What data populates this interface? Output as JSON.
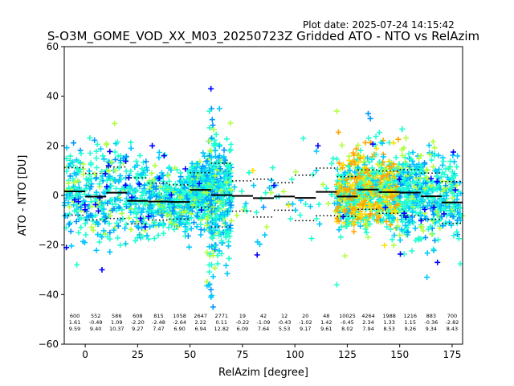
{
  "plot_date": "Plot date: 2025-07-24 14:15:42",
  "chart_data": {
    "type": "scatter",
    "title": "S-O3M_GOME_VOD_XX_M03_20250723Z Gridded ATO - NTO vs RelAzim",
    "xlabel": "RelAzim [degree]",
    "ylabel": "ATO - NTO [DU]",
    "xlim": [
      -10,
      180
    ],
    "ylim": [
      -60,
      60
    ],
    "x_ticks": [
      "0",
      "25",
      "50",
      "75",
      "100",
      "125",
      "150",
      "175"
    ],
    "x_tick_values": [
      0,
      25,
      50,
      75,
      100,
      125,
      150,
      175
    ],
    "y_ticks": [
      "−60",
      "−40",
      "−20",
      "0",
      "20",
      "40",
      "60"
    ],
    "y_tick_values": [
      -60,
      -40,
      -20,
      0,
      20,
      40,
      60
    ],
    "marker": "+",
    "colors": {
      "blue": "#0000ff",
      "azure": "#0096ff",
      "sky": "#00c8ff",
      "aqua": "#20ffd0",
      "lime": "#b0ff40",
      "yellow": "#ffe000",
      "orange": "#ffa500",
      "mean_line": "#000000",
      "frame": "#000000"
    },
    "bins": [
      {
        "x0": -10,
        "x1": 0,
        "count": "600",
        "mean": "1.61",
        "std": "9.59",
        "mean_v": 1.61,
        "std_v": 9.59
      },
      {
        "x0": 0,
        "x1": 10,
        "count": "552",
        "mean": "-0.49",
        "std": "9.40",
        "mean_v": -0.49,
        "std_v": 9.4
      },
      {
        "x0": 10,
        "x1": 20,
        "count": "586",
        "mean": "1.09",
        "std": "10.37",
        "mean_v": 1.09,
        "std_v": 10.37
      },
      {
        "x0": 20,
        "x1": 30,
        "count": "608",
        "mean": "-2.20",
        "std": "9.27",
        "mean_v": -2.2,
        "std_v": 9.27
      },
      {
        "x0": 30,
        "x1": 40,
        "count": "815",
        "mean": "-2.48",
        "std": "7.47",
        "mean_v": -2.48,
        "std_v": 7.47
      },
      {
        "x0": 40,
        "x1": 50,
        "count": "1058",
        "mean": "-2.64",
        "std": "6.90",
        "mean_v": -2.64,
        "std_v": 6.9
      },
      {
        "x0": 50,
        "x1": 60,
        "count": "2647",
        "mean": "2.22",
        "std": "6.94",
        "mean_v": 2.22,
        "std_v": 6.94
      },
      {
        "x0": 60,
        "x1": 70,
        "count": "2771",
        "mean": "0.11",
        "std": "12.82",
        "mean_v": 0.11,
        "std_v": 12.82
      },
      {
        "x0": 70,
        "x1": 80,
        "count": "19",
        "mean": "-0.22",
        "std": "6.09",
        "mean_v": -0.22,
        "std_v": 6.09
      },
      {
        "x0": 80,
        "x1": 90,
        "count": "42",
        "mean": "-1.09",
        "std": "7.64",
        "mean_v": -1.09,
        "std_v": 7.64
      },
      {
        "x0": 90,
        "x1": 100,
        "count": "12",
        "mean": "-0.43",
        "std": "5.53",
        "mean_v": -0.43,
        "std_v": 5.53
      },
      {
        "x0": 100,
        "x1": 110,
        "count": "20",
        "mean": "-1.02",
        "std": "9.17",
        "mean_v": -1.02,
        "std_v": 9.17
      },
      {
        "x0": 110,
        "x1": 120,
        "count": "48",
        "mean": "1.42",
        "std": "9.61",
        "mean_v": 1.42,
        "std_v": 9.61
      },
      {
        "x0": 120,
        "x1": 130,
        "count": "10025",
        "mean": "-0.45",
        "std": "8.02",
        "mean_v": -0.45,
        "std_v": 8.02
      },
      {
        "x0": 130,
        "x1": 140,
        "count": "4264",
        "mean": "2.34",
        "std": "7.94",
        "mean_v": 2.34,
        "std_v": 7.94
      },
      {
        "x0": 140,
        "x1": 150,
        "count": "1988",
        "mean": "1.33",
        "std": "8.53",
        "mean_v": 1.33,
        "std_v": 8.53
      },
      {
        "x0": 150,
        "x1": 160,
        "count": "1216",
        "mean": "1.15",
        "std": "9.26",
        "mean_v": 1.15,
        "std_v": 9.26
      },
      {
        "x0": 160,
        "x1": 170,
        "count": "883",
        "mean": "-0.36",
        "std": "9.34",
        "mean_v": -0.36,
        "std_v": 9.34
      },
      {
        "x0": 170,
        "x1": 180,
        "count": "700",
        "mean": "-2.82",
        "std": "8.43",
        "mean_v": -2.82,
        "std_v": 8.43
      }
    ],
    "outliers": [
      {
        "x": 60,
        "y": 43,
        "c": "blue"
      },
      {
        "x": 61,
        "y": -45,
        "c": "azure"
      },
      {
        "x": 60,
        "y": -41,
        "c": "sky"
      },
      {
        "x": 60,
        "y": -38,
        "c": "azure"
      },
      {
        "x": 82,
        "y": -24,
        "c": "blue"
      },
      {
        "x": 120,
        "y": -36,
        "c": "aqua"
      },
      {
        "x": 120,
        "y": 34,
        "c": "lime"
      },
      {
        "x": 135,
        "y": 33,
        "c": "azure"
      },
      {
        "x": 136,
        "y": 31,
        "c": "azure"
      },
      {
        "x": 104,
        "y": 23,
        "c": "aqua"
      },
      {
        "x": 111,
        "y": 20,
        "c": "blue"
      },
      {
        "x": 14,
        "y": 29,
        "c": "lime"
      },
      {
        "x": 8,
        "y": -30,
        "c": "blue"
      },
      {
        "x": 168,
        "y": -27,
        "c": "blue"
      },
      {
        "x": -9,
        "y": -21,
        "c": "blue"
      },
      {
        "x": -4,
        "y": -28,
        "c": "aqua"
      },
      {
        "x": 32,
        "y": 20,
        "c": "blue"
      },
      {
        "x": 163,
        "y": -33,
        "c": "sky"
      },
      {
        "x": 80,
        "y": 10,
        "c": "yellow"
      },
      {
        "x": 90,
        "y": 4,
        "c": "blue"
      },
      {
        "x": 97,
        "y": -4,
        "c": "yellow"
      }
    ]
  }
}
